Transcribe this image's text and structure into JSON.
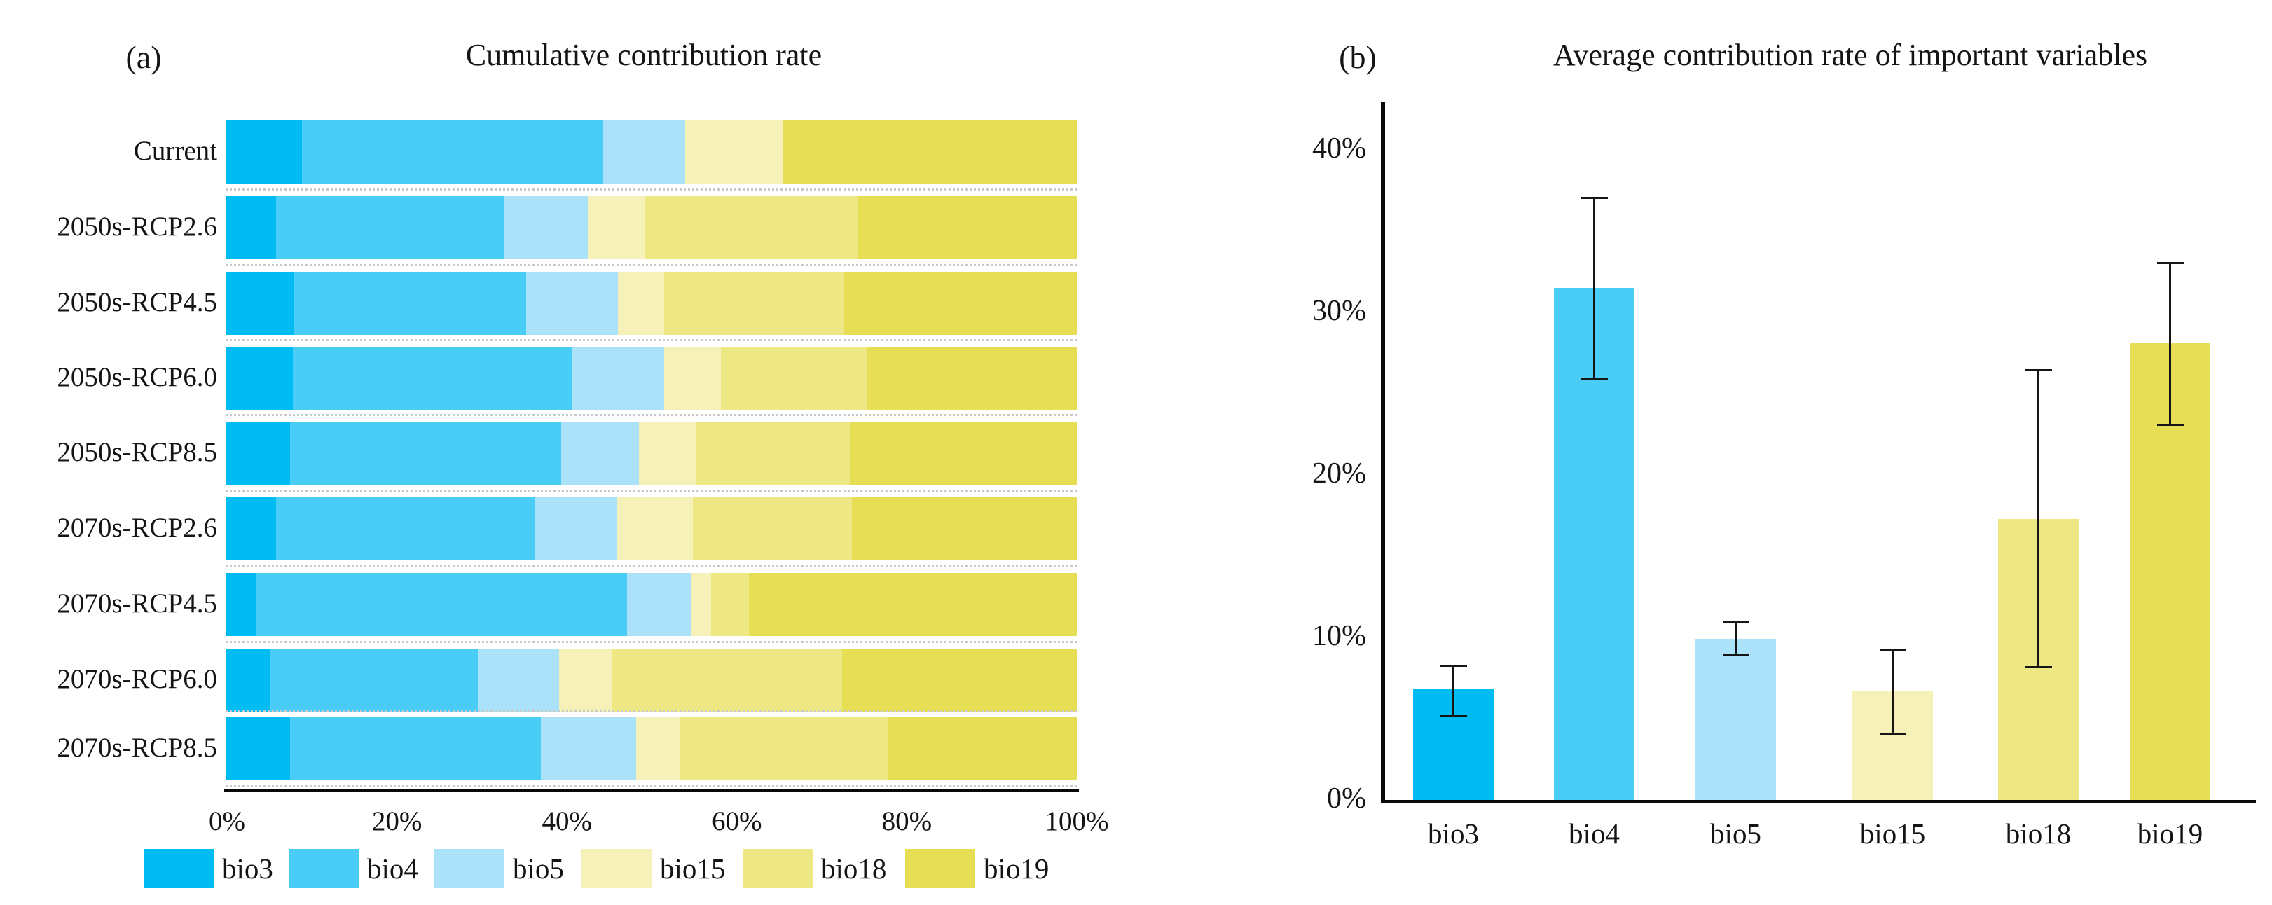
{
  "panel_a": {
    "label": "(a)",
    "title": "Cumulative contribution rate"
  },
  "panel_b": {
    "label": "(b)",
    "title": "Average contribution rate of important variables"
  },
  "chart_data": [
    {
      "type": "bar",
      "orientation": "horizontal-stacked",
      "panel": "(a)",
      "title": "Cumulative contribution rate",
      "categories": [
        "Current",
        "2050s-RCP2.6",
        "2050s-RCP4.5",
        "2050s-RCP6.0",
        "2050s-RCP8.5",
        "2070s-RCP2.6",
        "2070s-RCP4.5",
        "2070s-RCP6.0",
        "2070s-RCP8.5"
      ],
      "series": [
        {
          "name": "bio3",
          "color": "#00bcf2",
          "values": [
            9.0,
            5.9,
            8.0,
            7.9,
            7.6,
            5.9,
            3.6,
            5.3,
            7.6
          ]
        },
        {
          "name": "bio4",
          "color": "#49cdf6",
          "values": [
            35.4,
            26.8,
            27.3,
            32.8,
            31.8,
            30.4,
            43.6,
            24.3,
            29.4
          ]
        },
        {
          "name": "bio5",
          "color": "#abe2fa",
          "values": [
            9.6,
            9.9,
            10.8,
            10.8,
            9.2,
            9.7,
            7.5,
            9.6,
            11.2
          ]
        },
        {
          "name": "bio15",
          "color": "#f6f1b8",
          "values": [
            11.4,
            6.6,
            5.4,
            6.7,
            6.7,
            8.9,
            2.3,
            6.2,
            5.1
          ]
        },
        {
          "name": "bio18",
          "color": "#ede884",
          "values": [
            0.0,
            25.0,
            21.1,
            17.2,
            18.0,
            18.7,
            4.5,
            27.0,
            24.6
          ]
        },
        {
          "name": "bio19",
          "color": "#e6df55",
          "values": [
            34.6,
            25.8,
            27.4,
            24.6,
            26.7,
            26.4,
            38.5,
            27.6,
            22.1
          ]
        }
      ],
      "x_axis": {
        "min": 0,
        "max": 100,
        "ticks": [
          "0%",
          "20%",
          "40%",
          "60%",
          "80%",
          "100%"
        ]
      },
      "legend_position": "bottom",
      "grid": false
    },
    {
      "type": "bar",
      "orientation": "vertical",
      "panel": "(b)",
      "title": "Average contribution rate of important variables",
      "categories": [
        "bio3",
        "bio4",
        "bio5",
        "bio15",
        "bio18",
        "bio19"
      ],
      "values": [
        6.8,
        31.5,
        9.9,
        6.7,
        17.3,
        28.1
      ],
      "error_low": [
        5.1,
        25.8,
        8.9,
        4.0,
        8.1,
        23.0
      ],
      "error_high": [
        8.3,
        37.1,
        11.0,
        9.3,
        26.5,
        33.1
      ],
      "colors": [
        "#00bcf2",
        "#49cdf6",
        "#abe2fa",
        "#f6f1b8",
        "#ede884",
        "#e6df55"
      ],
      "y_axis": {
        "min": 0,
        "max": 44,
        "ticks": [
          "0%",
          "10%",
          "20%",
          "30%",
          "40%"
        ],
        "tick_values": [
          0,
          10,
          20,
          30,
          40
        ]
      },
      "grid": false
    }
  ]
}
